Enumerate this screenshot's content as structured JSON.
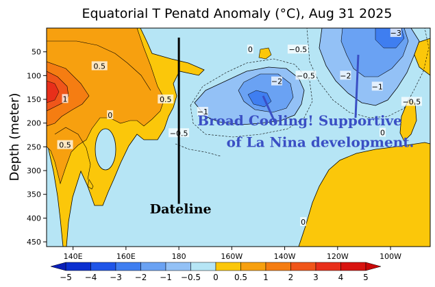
{
  "chart_data": {
    "type": "heatmap",
    "title": "Equatorial T Penatd Anomaly (°C), Aug 31 2025",
    "ylabel": "Depth (meter)",
    "xlabel": "",
    "x_ticks": [
      "140E",
      "160E",
      "180",
      "160W",
      "140W",
      "120W",
      "100W"
    ],
    "x_ticks_deg": [
      140,
      160,
      180,
      200,
      220,
      240,
      260
    ],
    "xlim_deg": [
      130,
      275
    ],
    "y_ticks": [
      50,
      100,
      150,
      200,
      250,
      300,
      350,
      400,
      450
    ],
    "ylim": [
      0,
      460
    ],
    "colorbar": {
      "bounds": [
        -5,
        -4,
        -3,
        -2,
        -1,
        -0.5,
        0,
        0.5,
        1,
        2,
        3,
        4,
        5
      ],
      "labels": [
        "−5",
        "−4",
        "−3",
        "−2",
        "−1",
        "−0.5",
        "0",
        "0.5",
        "1",
        "2",
        "3",
        "4",
        "5"
      ],
      "colors": [
        "#0b2fd0",
        "#1f55e8",
        "#3f7ef0",
        "#6aa2f3",
        "#93c1f6",
        "#b6e5f5",
        "#fbc70a",
        "#f7a00f",
        "#f57d12",
        "#f0561a",
        "#e82f1a",
        "#d81410"
      ]
    },
    "contour_labels": [
      {
        "text": "0.5",
        "x": 150,
        "y": 80
      },
      {
        "text": "1",
        "x": 137,
        "y": 149
      },
      {
        "text": "0",
        "x": 154,
        "y": 183
      },
      {
        "text": "0.5",
        "x": 137,
        "y": 246
      },
      {
        "text": "0.5",
        "x": 175,
        "y": 150
      },
      {
        "text": "0",
        "x": 207,
        "y": 45
      },
      {
        "text": "−0.5",
        "x": 225,
        "y": 45
      },
      {
        "text": "−2",
        "x": 217,
        "y": 112
      },
      {
        "text": "−0.5",
        "x": 228,
        "y": 100
      },
      {
        "text": "−1",
        "x": 189,
        "y": 176
      },
      {
        "text": "−0.5",
        "x": 180,
        "y": 221
      },
      {
        "text": "−3",
        "x": 262,
        "y": 10
      },
      {
        "text": "−2",
        "x": 243,
        "y": 100
      },
      {
        "text": "−1",
        "x": 255,
        "y": 123
      },
      {
        "text": "−0.5",
        "x": 268,
        "y": 155
      },
      {
        "text": "0",
        "x": 257,
        "y": 220
      },
      {
        "text": "0",
        "x": 227,
        "y": 408
      }
    ],
    "annotations": [
      {
        "text": "Broad Cooling! Supportive",
        "x": 187,
        "y": 205
      },
      {
        "text": "of La Nina development.",
        "x": 198,
        "y": 250
      },
      {
        "text": "Dateline",
        "x": 169,
        "y": 390
      }
    ],
    "dateline_deg": 180
  }
}
